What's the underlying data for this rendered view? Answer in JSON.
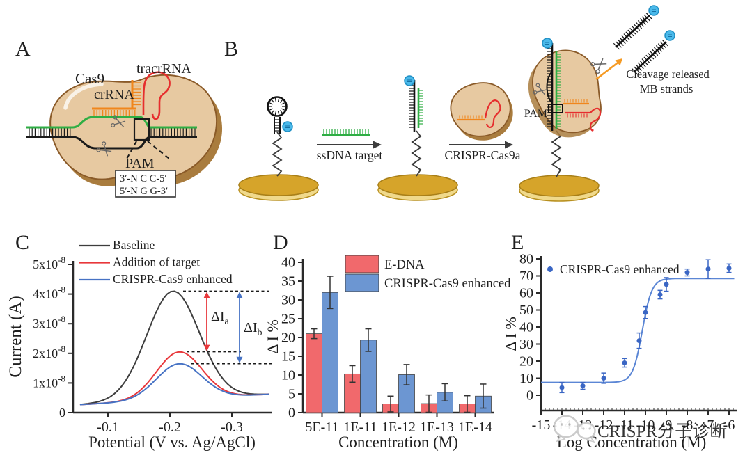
{
  "figure": {
    "panels": {
      "A": {
        "label": "A",
        "cas9_label": "Cas9",
        "crRNA_label": "crRNA",
        "tracrRNA_label": "tracrRNA",
        "pam_label": "PAM",
        "pam_seq_top": "3′-N C C-5′",
        "pam_seq_bottom": "5′-N G G-3′"
      },
      "B": {
        "label": "B",
        "step1_label": "ssDNA target",
        "step2_label": "CRISPR-Cas9a",
        "pam_label": "PAM",
        "cleavage_line1": "Cleavage released",
        "cleavage_line2": "MB strands"
      },
      "C": {
        "label": "C"
      },
      "D": {
        "label": "D"
      },
      "E": {
        "label": "E"
      }
    },
    "watermark": {
      "text": "CRISPR分子诊断"
    },
    "colors": {
      "dna_green": "#2fae44",
      "crRNA_orange": "#f0861c",
      "tracrRNA_red": "#e62e2e",
      "cas9_fill": "#e7c9a1",
      "cas9_shadow": "#a97c3e",
      "gold": "#d6a42a",
      "gold_light": "#f0d98b",
      "mb_blue": "#4ab9ea",
      "arrow_gray": "#3d3d3d",
      "orange_arrow": "#f59a23"
    }
  },
  "chart_data": [
    {
      "panel": "C",
      "type": "line",
      "xlabel": "Potential (V vs. Ag/AgCl)",
      "ylabel": "Current (A)",
      "x_ticks": [
        -0.1,
        -0.2,
        -0.3
      ],
      "y_ticks": [
        "0",
        "1x10^-8",
        "2x10^-8",
        "3x10^-8",
        "4x10^-8",
        "5x10^-8"
      ],
      "xlim": [
        -0.044,
        -0.364
      ],
      "ylim": [
        0,
        5e-08
      ],
      "series": [
        {
          "name": "Baseline",
          "color": "#3d3d3d",
          "peak_current": 4.1e-08,
          "peak_potential": -0.205,
          "sigma": 0.06
        },
        {
          "name": "Addition of target",
          "color": "#e8373b",
          "peak_current": 2.05e-08,
          "peak_potential": -0.215,
          "sigma": 0.052
        },
        {
          "name": "CRISPR-Cas9 enhanced",
          "color": "#4672c4",
          "peak_current": 1.65e-08,
          "peak_potential": -0.215,
          "sigma": 0.052
        }
      ],
      "baseline_current_range": [
        2.7e-09,
        6.2e-09
      ],
      "annotations": [
        {
          "text": "ΔI",
          "sub": "a",
          "color": "#e8373b"
        },
        {
          "text": "ΔI",
          "sub": "b",
          "color": "#4672c4"
        }
      ]
    },
    {
      "panel": "D",
      "type": "bar",
      "xlabel": "Concentration (M)",
      "ylabel": "Δ I %",
      "categories": [
        "5E-11",
        "1E-11",
        "1E-12",
        "1E-13",
        "1E-14"
      ],
      "y_ticks": [
        0,
        5,
        10,
        15,
        20,
        25,
        30,
        35,
        40
      ],
      "ylim": [
        0,
        40
      ],
      "series": [
        {
          "name": "E-DNA",
          "color": "#f1696c",
          "values": [
            21,
            10.3,
            2.3,
            2.4,
            2.3
          ],
          "errors": [
            1.3,
            2.2,
            2.1,
            2.3,
            2.2
          ]
        },
        {
          "name": "CRISPR-Cas9 enhanced",
          "color": "#6c96d2",
          "values": [
            32,
            19.3,
            10.1,
            5.4,
            4.4
          ],
          "errors": [
            4.3,
            3.0,
            2.7,
            2.3,
            3.2
          ]
        }
      ]
    },
    {
      "panel": "E",
      "type": "scatter",
      "xlabel": "Log Concentration (M)",
      "ylabel": "Δ I %",
      "legend": "CRISPR-Cas9 enhanced",
      "color": "#4672c4",
      "point_color": "#3a66c4",
      "x_ticks": [
        -15,
        -14,
        -13,
        -12,
        -11,
        -10,
        -9,
        -8,
        -7,
        -6
      ],
      "y_ticks": [
        0,
        10,
        20,
        30,
        40,
        50,
        60,
        70,
        80
      ],
      "xlim": [
        -15,
        -5.7
      ],
      "ylim": [
        0,
        80
      ],
      "x": [
        -14,
        -13,
        -12,
        -11,
        -10.3,
        -10,
        -9.3,
        -9,
        -8,
        -7,
        -6
      ],
      "y": [
        4.5,
        5.5,
        10,
        19,
        32,
        48.5,
        59,
        65,
        72,
        74,
        74.5
      ],
      "yerr": [
        3,
        2,
        3,
        2.5,
        4.5,
        3.5,
        2.5,
        4,
        2,
        5.5,
        2.5
      ],
      "fit": {
        "bottom": 7.5,
        "top": 68.5,
        "logEC50": -10.15,
        "hill": 1.9
      }
    }
  ]
}
